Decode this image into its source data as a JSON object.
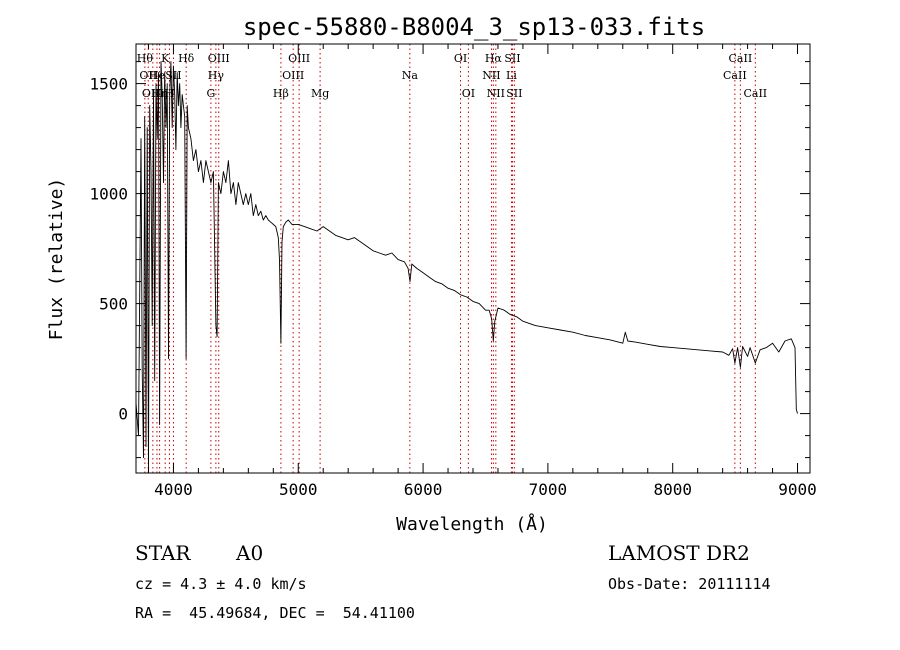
{
  "chart_data": {
    "type": "line",
    "title": "spec-55880-B8004_3_sp13-033.fits",
    "xlabel": "Wavelength (Å)",
    "ylabel": "Flux (relative)",
    "xlim": [
      3700,
      9100
    ],
    "ylim": [
      -270,
      1680
    ],
    "x_ticks": [
      4000,
      5000,
      6000,
      7000,
      8000,
      9000
    ],
    "y_ticks": [
      0,
      500,
      1000,
      1500
    ],
    "x_tick_labels": [
      "4000",
      "5000",
      "6000",
      "7000",
      "8000",
      "9000"
    ],
    "y_tick_labels": [
      "0",
      "500",
      "1000",
      "1500"
    ],
    "grid": false,
    "series": [
      {
        "x": [
          3700,
          3720,
          3740,
          3750,
          3760,
          3770,
          3780,
          3790,
          3800,
          3810,
          3820,
          3830,
          3840,
          3850,
          3860,
          3870,
          3880,
          3889,
          3900,
          3910,
          3920,
          3930,
          3940,
          3950,
          3960,
          3970,
          3980,
          3990,
          4000,
          4010,
          4020,
          4030,
          4040,
          4050,
          4060,
          4070,
          4080,
          4090,
          4101,
          4110,
          4120,
          4140,
          4160,
          4180,
          4200,
          4220,
          4240,
          4260,
          4280,
          4300,
          4320,
          4340,
          4350,
          4360,
          4380,
          4400,
          4420,
          4440,
          4460,
          4480,
          4500,
          4520,
          4540,
          4560,
          4580,
          4600,
          4620,
          4640,
          4660,
          4680,
          4700,
          4720,
          4740,
          4760,
          4780,
          4800,
          4820,
          4840,
          4850,
          4861,
          4870,
          4880,
          4900,
          4920,
          4950,
          5000,
          5050,
          5100,
          5150,
          5200,
          5250,
          5300,
          5350,
          5400,
          5450,
          5500,
          5550,
          5600,
          5650,
          5700,
          5750,
          5800,
          5850,
          5880,
          5895,
          5910,
          5950,
          6000,
          6050,
          6100,
          6150,
          6200,
          6250,
          6300,
          6350,
          6400,
          6450,
          6500,
          6530,
          6550,
          6563,
          6575,
          6600,
          6650,
          6700,
          6750,
          6800,
          6850,
          6900,
          7000,
          7100,
          7200,
          7300,
          7400,
          7500,
          7600,
          7620,
          7640,
          7700,
          7800,
          7900,
          8000,
          8100,
          8200,
          8300,
          8400,
          8450,
          8480,
          8498,
          8520,
          8542,
          8560,
          8600,
          8620,
          8662,
          8700,
          8750,
          8800,
          8850,
          8900,
          8950,
          8980,
          8990,
          9000
        ],
        "y": [
          50,
          -100,
          1250,
          200,
          -200,
          1350,
          -150,
          1300,
          -250,
          1400,
          1100,
          400,
          1450,
          150,
          1500,
          1250,
          1550,
          -50,
          1600,
          1450,
          1050,
          1550,
          1300,
          1500,
          250,
          1450,
          1600,
          1300,
          1580,
          1450,
          1200,
          1550,
          1400,
          1500,
          1300,
          1450,
          1400,
          1350,
          250,
          1400,
          1300,
          1250,
          1150,
          1200,
          1100,
          1150,
          1050,
          1150,
          1100,
          1050,
          1100,
          400,
          350,
          1050,
          1000,
          1100,
          1050,
          1150,
          1000,
          1050,
          950,
          1050,
          1000,
          950,
          1000,
          950,
          1000,
          900,
          950,
          900,
          920,
          880,
          900,
          880,
          870,
          860,
          850,
          800,
          700,
          320,
          780,
          850,
          870,
          880,
          860,
          860,
          850,
          840,
          830,
          850,
          830,
          810,
          800,
          790,
          800,
          780,
          760,
          740,
          730,
          720,
          730,
          700,
          690,
          660,
          600,
          680,
          660,
          640,
          620,
          600,
          590,
          570,
          560,
          540,
          530,
          510,
          500,
          470,
          470,
          430,
          330,
          420,
          480,
          470,
          450,
          440,
          420,
          410,
          400,
          390,
          380,
          370,
          355,
          345,
          335,
          320,
          370,
          330,
          325,
          315,
          305,
          300,
          295,
          290,
          285,
          280,
          265,
          295,
          230,
          300,
          210,
          305,
          260,
          300,
          230,
          290,
          300,
          320,
          280,
          330,
          340,
          300,
          20,
          0
        ]
      }
    ],
    "line_labels": [
      {
        "x": 3771,
        "text": "Hθ",
        "row": 1
      },
      {
        "x": 3798,
        "text": "OII",
        "row": 2
      },
      {
        "x": 3835,
        "text": "OIII",
        "row": 3
      },
      {
        "x": 3868,
        "text": "He",
        "row": 2
      },
      {
        "x": 3889,
        "text": "Hη",
        "row": 3
      },
      {
        "x": 3934,
        "text": "K",
        "row": 1
      },
      {
        "x": 3968,
        "text": "H",
        "row": 3
      },
      {
        "x": 4000,
        "text": "SII",
        "row": 2
      },
      {
        "x": 4102,
        "text": "Hδ",
        "row": 1
      },
      {
        "x": 4300,
        "text": "G",
        "row": 3
      },
      {
        "x": 4340,
        "text": "Hγ",
        "row": 2
      },
      {
        "x": 4363,
        "text": "OIII",
        "row": 1
      },
      {
        "x": 4861,
        "text": "Hβ",
        "row": 3
      },
      {
        "x": 4959,
        "text": "OIII",
        "row": 2
      },
      {
        "x": 5007,
        "text": "OIII",
        "row": 1
      },
      {
        "x": 5175,
        "text": "Mg",
        "row": 3
      },
      {
        "x": 5894,
        "text": "Na",
        "row": 2
      },
      {
        "x": 6300,
        "text": "OI",
        "row": 1
      },
      {
        "x": 6363,
        "text": "OI",
        "row": 3
      },
      {
        "x": 6548,
        "text": "NII",
        "row": 2
      },
      {
        "x": 6563,
        "text": "Hα",
        "row": 1
      },
      {
        "x": 6583,
        "text": "NII",
        "row": 3
      },
      {
        "x": 6708,
        "text": "Li",
        "row": 2
      },
      {
        "x": 6716,
        "text": "SII",
        "row": 1
      },
      {
        "x": 6731,
        "text": "SII",
        "row": 3
      },
      {
        "x": 8498,
        "text": "CaII",
        "row": 2
      },
      {
        "x": 8542,
        "text": "CaII",
        "row": 1
      },
      {
        "x": 8662,
        "text": "CaII",
        "row": 3
      }
    ],
    "color_line": "#000000",
    "color_marker": "#cc0000"
  },
  "info": {
    "object_type": "STAR",
    "subclass": "A0",
    "survey": "LAMOST DR2",
    "cz": "cz = 4.3 ± 4.0 km/s",
    "obs_date": "Obs-Date: 20111114",
    "coords": "RA =  45.49684, DEC =  54.41100"
  }
}
